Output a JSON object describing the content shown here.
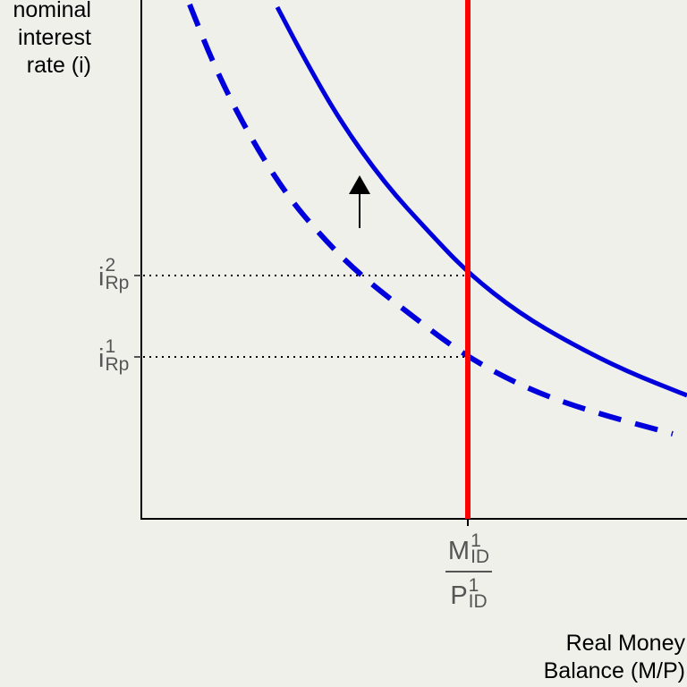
{
  "chart_data": {
    "type": "line",
    "title": "",
    "ylabel_lines": [
      "nominal",
      "interest",
      "rate (i)"
    ],
    "xlabel_lines": [
      "Real Money",
      "Balance (M/P)"
    ],
    "y_ticks": [
      {
        "base": "i",
        "sup": "2",
        "sub": "Rp"
      },
      {
        "base": "i",
        "sup": "1",
        "sub": "Rp"
      }
    ],
    "x_tick": {
      "numerator": {
        "base": "M",
        "sup": "1",
        "sub": "ID"
      },
      "denominator": {
        "base": "P",
        "sup": "1",
        "sub": "ID"
      }
    },
    "series": [
      {
        "style": "dashed",
        "color": "#0000dd"
      },
      {
        "style": "solid",
        "color": "#0000dd"
      },
      {
        "style": "vertical",
        "color": "#ff0000"
      }
    ],
    "annotations": [
      {
        "type": "arrow",
        "direction": "up"
      }
    ],
    "grid": false
  }
}
